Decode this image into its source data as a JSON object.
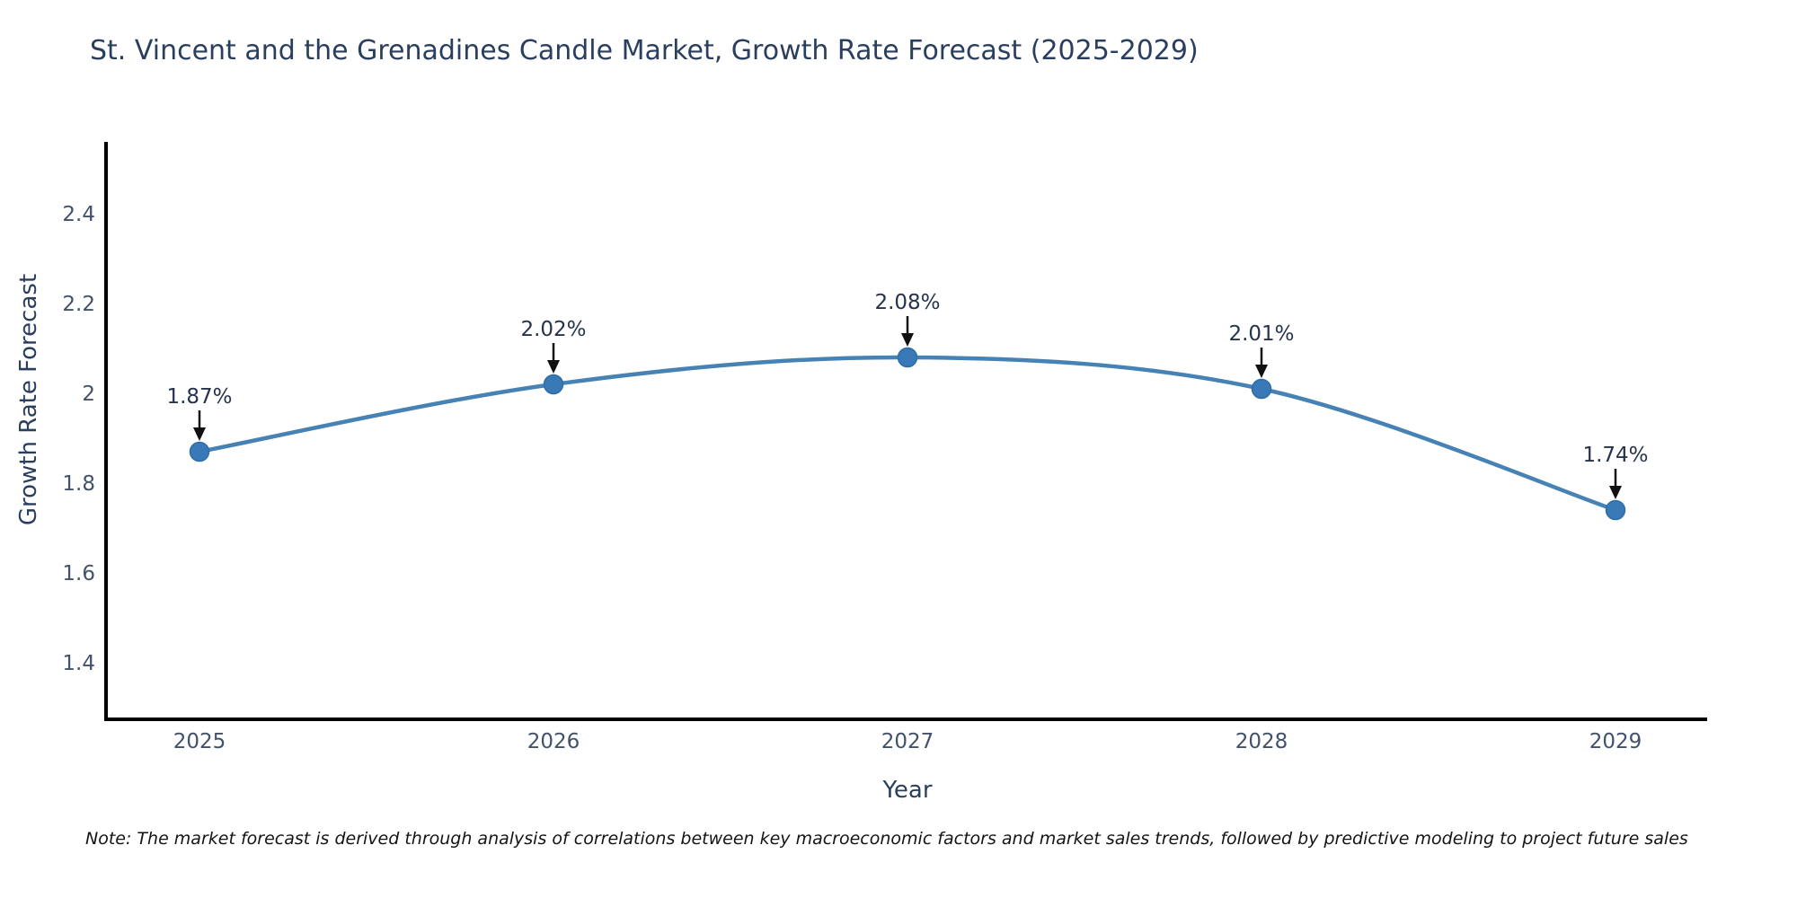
{
  "chart": {
    "title": "St. Vincent and the Grenadines Candle Market, Growth Rate Forecast (2025-2029)",
    "xlabel": "Year",
    "ylabel": "Growth Rate Forecast",
    "note": "Note: The market forecast is derived through analysis of correlations between key macroeconomic factors and market sales trends, followed by predictive modeling to project future sales",
    "colors": {
      "line": "#4682b4",
      "marker": "#3a79b8",
      "axis": "#000000",
      "title_text": "#2a3f5f",
      "tick_text": "#42526b",
      "annotation_text": "#26334d",
      "note_text": "#141414",
      "background": "#ffffff"
    }
  },
  "chart_data": {
    "type": "line",
    "title": "St. Vincent and the Grenadines Candle Market, Growth Rate Forecast (2025-2029)",
    "xlabel": "Year",
    "ylabel": "Growth Rate Forecast",
    "categories": [
      "2025",
      "2026",
      "2027",
      "2028",
      "2029"
    ],
    "series": [
      {
        "name": "Growth Rate Forecast",
        "values": [
          1.87,
          2.02,
          2.08,
          2.01,
          1.74
        ],
        "point_labels": [
          "1.87%",
          "2.02%",
          "2.08%",
          "2.01%",
          "1.74%"
        ]
      }
    ],
    "yticks": [
      2.4,
      2.2,
      2,
      1.8,
      1.6,
      1.4
    ],
    "ylim": [
      1.27,
      2.56
    ],
    "line_shape": "spline",
    "markers": true,
    "grid": false,
    "legend": false,
    "annotations_arrows": true
  }
}
